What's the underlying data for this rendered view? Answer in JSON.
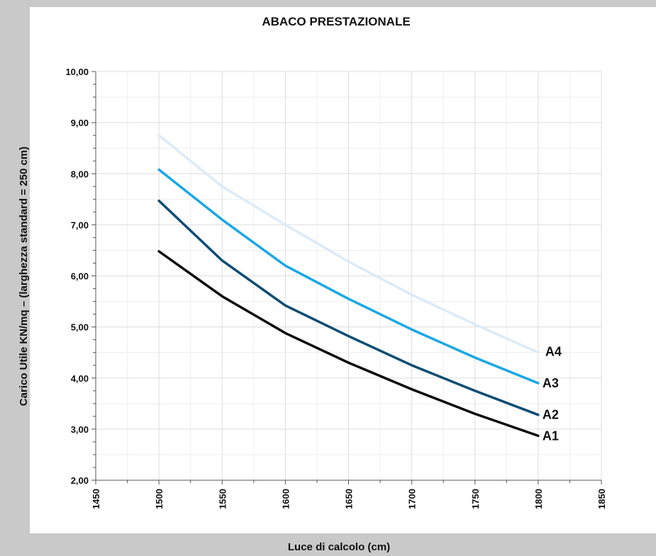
{
  "chart_data": {
    "type": "line",
    "title": "ABACO PRESTAZIONALE",
    "xlabel": "Luce di calcolo (cm)",
    "ylabel": "Carico Utile KN/mq – (larghezza standard = 250 cm)",
    "xlim": [
      1450,
      1850
    ],
    "ylim": [
      2.0,
      10.0
    ],
    "x_ticks": [
      1450,
      1500,
      1550,
      1600,
      1650,
      1700,
      1750,
      1800,
      1850
    ],
    "y_ticks": [
      2,
      3,
      4,
      5,
      6,
      7,
      8,
      9,
      10
    ],
    "y_tick_labels": [
      "2,00",
      "3,00",
      "4,00",
      "5,00",
      "6,00",
      "7,00",
      "8,00",
      "9,00",
      "10,00"
    ],
    "grid": true,
    "x": [
      1500,
      1550,
      1600,
      1650,
      1700,
      1750,
      1800
    ],
    "series": [
      {
        "name": "A4",
        "values": [
          8.75,
          7.75,
          7.0,
          6.28,
          5.63,
          5.05,
          4.5
        ],
        "color": "#dcebf7"
      },
      {
        "name": "A3",
        "values": [
          8.08,
          7.1,
          6.2,
          5.55,
          4.95,
          4.4,
          3.9
        ],
        "color": "#1aa7e6"
      },
      {
        "name": "A2",
        "values": [
          7.47,
          6.3,
          5.42,
          4.82,
          4.25,
          3.75,
          3.28
        ],
        "color": "#0d4d73"
      },
      {
        "name": "A1",
        "values": [
          6.48,
          5.6,
          4.88,
          4.3,
          3.78,
          3.3,
          2.87
        ],
        "color": "#0a0a0a"
      }
    ]
  }
}
